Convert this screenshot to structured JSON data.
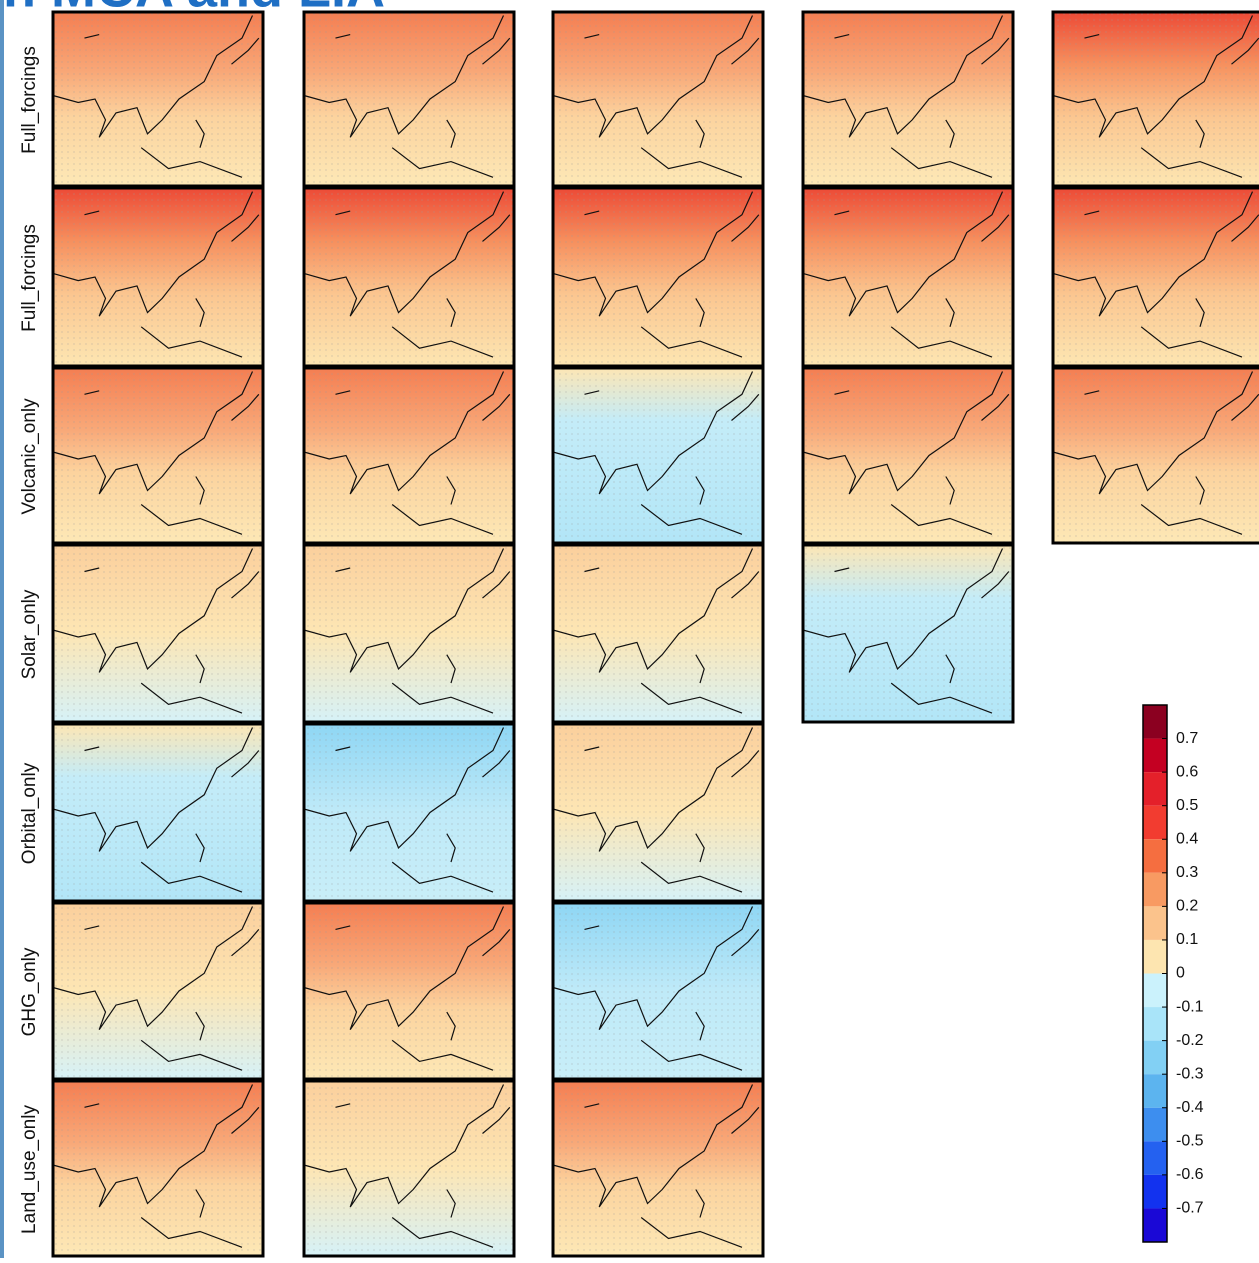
{
  "header": {
    "title": "on MCA and LIA"
  },
  "rows": [
    "Full_forcings",
    "Full_forcings",
    "Volcanic_only",
    "Solar_only",
    "Orbital_only",
    "GHG_only",
    "Land_use_only"
  ],
  "colorbar": {
    "labels": [
      "0.7",
      "0.6",
      "0.5",
      "0.4",
      "0.3",
      "0.2",
      "0.1",
      "0",
      "-0.1",
      "-0.2",
      "-0.3",
      "-0.4",
      "-0.5",
      "-0.6",
      "-0.7"
    ],
    "colors": [
      "#8b0020",
      "#c40022",
      "#e4202a",
      "#f23c30",
      "#f56e40",
      "#f89a62",
      "#fbc38c",
      "#fde5b0",
      "#cbf2fc",
      "#a9e4f9",
      "#82d0f4",
      "#5cb4ef",
      "#3d8eef",
      "#2461f0",
      "#1232ef",
      "#1a08d6"
    ]
  }
}
